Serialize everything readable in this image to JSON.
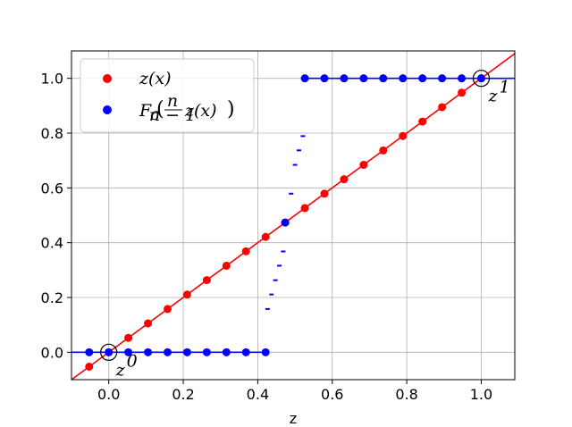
{
  "chart_data": {
    "type": "scatter",
    "xlabel": "z",
    "ylabel": "",
    "xlim": [
      -0.1,
      1.09
    ],
    "ylim": [
      -0.1,
      1.1
    ],
    "grid": true,
    "legend_position": "top-left",
    "x_ticks": [
      "0.0",
      "0.2",
      "0.4",
      "0.6",
      "0.8",
      "1.0"
    ],
    "x_tick_values": [
      0.0,
      0.2,
      0.4,
      0.6,
      0.8,
      1.0
    ],
    "y_ticks": [
      "0.0",
      "0.2",
      "0.4",
      "0.6",
      "0.8",
      "1.0"
    ],
    "y_tick_values": [
      0.0,
      0.2,
      0.4,
      0.6,
      0.8,
      1.0
    ],
    "series": [
      {
        "name": "z(x)",
        "color": "#ff0000",
        "x": [
          -0.0526,
          0.0,
          0.0526,
          0.1053,
          0.1579,
          0.2105,
          0.2632,
          0.3158,
          0.3684,
          0.4211,
          0.4737,
          0.5263,
          0.5789,
          0.6316,
          0.6842,
          0.7368,
          0.7895,
          0.8421,
          0.8947,
          0.9474,
          1.0
        ],
        "y": [
          -0.0526,
          0.0,
          0.0526,
          0.1053,
          0.1579,
          0.2105,
          0.2632,
          0.3158,
          0.3684,
          0.4211,
          0.4737,
          0.5263,
          0.5789,
          0.6316,
          0.6842,
          0.7368,
          0.7895,
          0.8421,
          0.8947,
          0.9474,
          1.0
        ]
      },
      {
        "name": "F_c(n/(n-1) z(x))",
        "color": "#0000ff",
        "x": [
          -0.0526,
          0.0,
          0.0526,
          0.1053,
          0.1579,
          0.2105,
          0.2632,
          0.3158,
          0.3684,
          0.4211,
          0.4737,
          0.5263,
          0.5789,
          0.6316,
          0.6842,
          0.7368,
          0.7895,
          0.8421,
          0.8947,
          0.9474,
          1.0
        ],
        "y": [
          0.0,
          0.0,
          0.0,
          0.0,
          0.0,
          0.0,
          0.0,
          0.0,
          0.0,
          0.0,
          0.4737,
          1.0,
          1.0,
          1.0,
          1.0,
          1.0,
          1.0,
          1.0,
          1.0,
          1.0,
          1.0
        ]
      }
    ],
    "blue_dashes": {
      "color": "#0000ff",
      "x": [
        0.4263,
        0.4368,
        0.4474,
        0.4579,
        0.4684,
        0.4895,
        0.5,
        0.5105,
        0.5211
      ],
      "y": [
        0.158,
        0.211,
        0.263,
        0.316,
        0.368,
        0.579,
        0.684,
        0.737,
        0.789
      ]
    },
    "lines": [
      {
        "color": "#ff0000",
        "x": [
          -0.1,
          1.09
        ],
        "y": [
          -0.1,
          1.09
        ]
      },
      {
        "color": "#0000ff",
        "x": [
          -0.1,
          0.4263
        ],
        "y": [
          0.0,
          0.0
        ]
      },
      {
        "color": "#0000ff",
        "x": [
          0.5211,
          1.09
        ],
        "y": [
          1.0,
          1.0
        ]
      }
    ],
    "annotations": [
      {
        "label": "z",
        "sup": "0",
        "x": 0.0,
        "y": 0.0
      },
      {
        "label": "z",
        "sup": "1",
        "x": 1.0,
        "y": 1.0
      }
    ],
    "legend": [
      {
        "label": "z(x)",
        "color": "#ff0000"
      },
      {
        "label": "F_c(n/(n-1) z(x))",
        "color": "#0000ff"
      }
    ]
  }
}
